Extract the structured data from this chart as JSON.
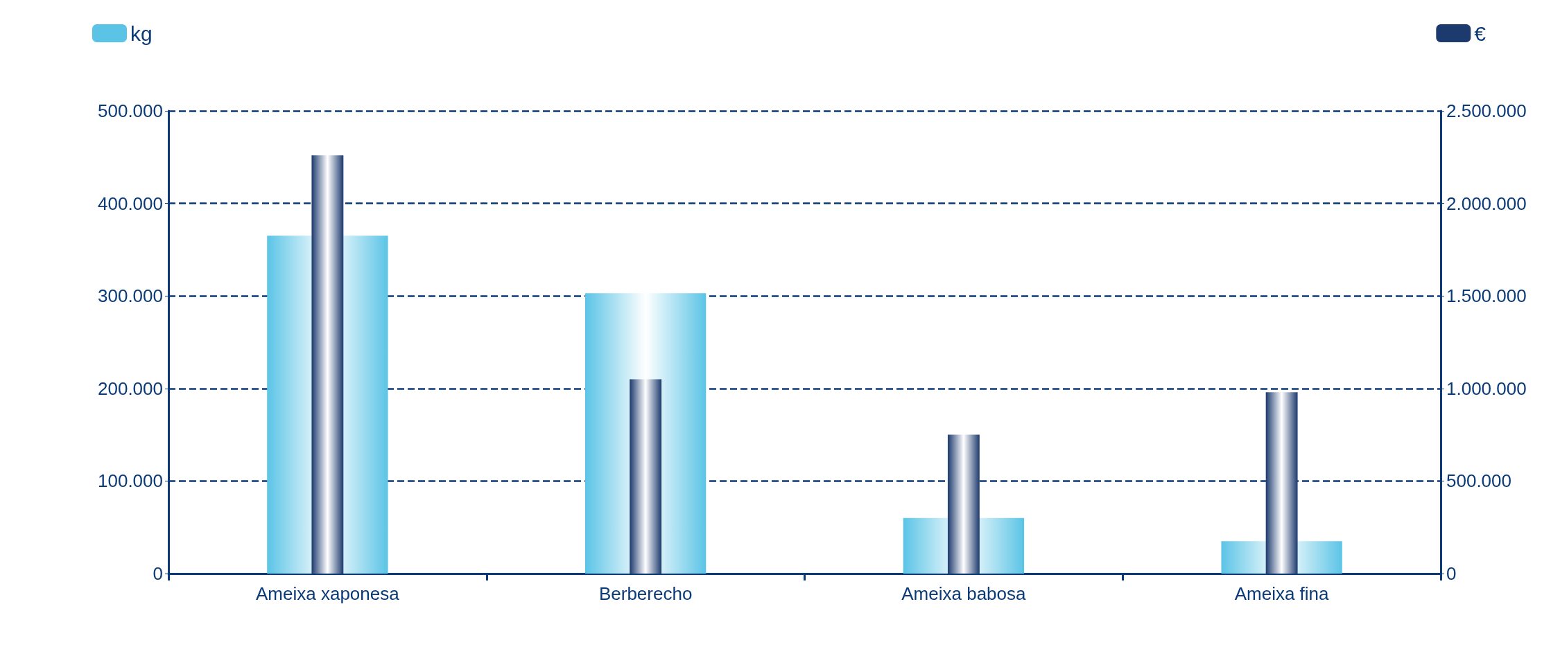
{
  "chart_data": {
    "type": "bar",
    "categories": [
      "Ameixa xaponesa",
      "Berberecho",
      "Ameixa babosa",
      "Ameixa fina"
    ],
    "series": [
      {
        "name": "kg",
        "color": "#5bc4e6",
        "values": [
          365000,
          303000,
          60000,
          35000
        ]
      },
      {
        "name": "€",
        "color": "#1c3a6e",
        "axis": "y2",
        "values": [
          2260000,
          1050000,
          750000,
          980000
        ]
      }
    ],
    "ylim": [
      0,
      500000
    ],
    "yticks": [
      {
        "value": 0,
        "label": "0"
      },
      {
        "value": 100000,
        "label": "100.000"
      },
      {
        "value": 200000,
        "label": "200.000"
      },
      {
        "value": 300000,
        "label": "300.000"
      },
      {
        "value": 400000,
        "label": "400.000"
      },
      {
        "value": 500000,
        "label": "500.000"
      }
    ],
    "y2lim": [
      0,
      2500000
    ],
    "y2ticks": [
      {
        "value": 0,
        "label": "0"
      },
      {
        "value": 500000,
        "label": "500.000"
      },
      {
        "value": 1000000,
        "label": "1.000.000"
      },
      {
        "value": 1500000,
        "label": "1.500.000"
      },
      {
        "value": 2000000,
        "label": "2.000.000"
      },
      {
        "value": 2500000,
        "label": "2.500.000"
      }
    ],
    "grid": "y",
    "legend": "top"
  }
}
